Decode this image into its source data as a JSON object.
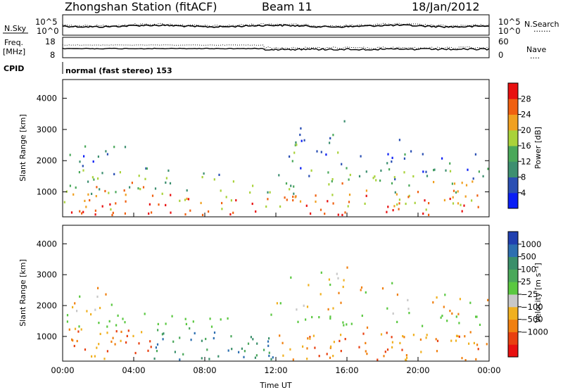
{
  "header": {
    "title": "Zhongshan Station (fitACF)",
    "beam": "Beam 11",
    "date": "18/Jan/2012"
  },
  "sky_panel": {
    "left_label": "N.Sky",
    "left_ticks": [
      "10^5",
      "10^0"
    ],
    "right_ticks": [
      "10^5",
      "10^0"
    ],
    "right_label": "N.Search",
    "right_line": "·······"
  },
  "freq_panel": {
    "left_label": "Freq.",
    "left_unit": "[MHz]",
    "left_ticks": [
      "18",
      "8"
    ],
    "right_ticks": [
      "60",
      "0"
    ],
    "right_label": "Nave",
    "right_line": "····",
    "cpid_label": "CPID"
  },
  "mode_text": "normal (fast stereo) 153",
  "chart_data": [
    {
      "type": "heatmap",
      "panel": "power",
      "ylabel": "Slant Range [km]",
      "yticks": [
        1000,
        2000,
        3000,
        4000
      ],
      "ylim": [
        200,
        4600
      ],
      "colorbar_label": "Power [dB]",
      "colorbar_ticks": [
        4,
        8,
        12,
        16,
        20,
        24,
        28
      ],
      "colorbar_colors": [
        "#0a1ef5",
        "#2a4fb3",
        "#3d8f70",
        "#4aa85a",
        "#a9d23a",
        "#f0a020",
        "#f06010",
        "#e81010"
      ]
    },
    {
      "type": "heatmap",
      "panel": "velocity",
      "ylabel": "Slant Range [km]",
      "yticks": [
        1000,
        2000,
        3000,
        4000
      ],
      "ylim": [
        200,
        4600
      ],
      "colorbar_label": "Velocity [m s⁻¹]",
      "colorbar_ticks": [
        "1000",
        "500",
        "100",
        "25",
        "−25",
        "−100",
        "−500",
        "−1000"
      ],
      "colorbar_colors": [
        "#2040b0",
        "#2d6fb0",
        "#3a8f6a",
        "#4aa85a",
        "#5ac840",
        "#c8c8c8",
        "#f0b020",
        "#f08010",
        "#e84010",
        "#e81010"
      ],
      "xlabel": "Time UT",
      "xticks": [
        "00:00",
        "04:00",
        "08:00",
        "12:00",
        "16:00",
        "20:00",
        "00:00"
      ]
    }
  ]
}
